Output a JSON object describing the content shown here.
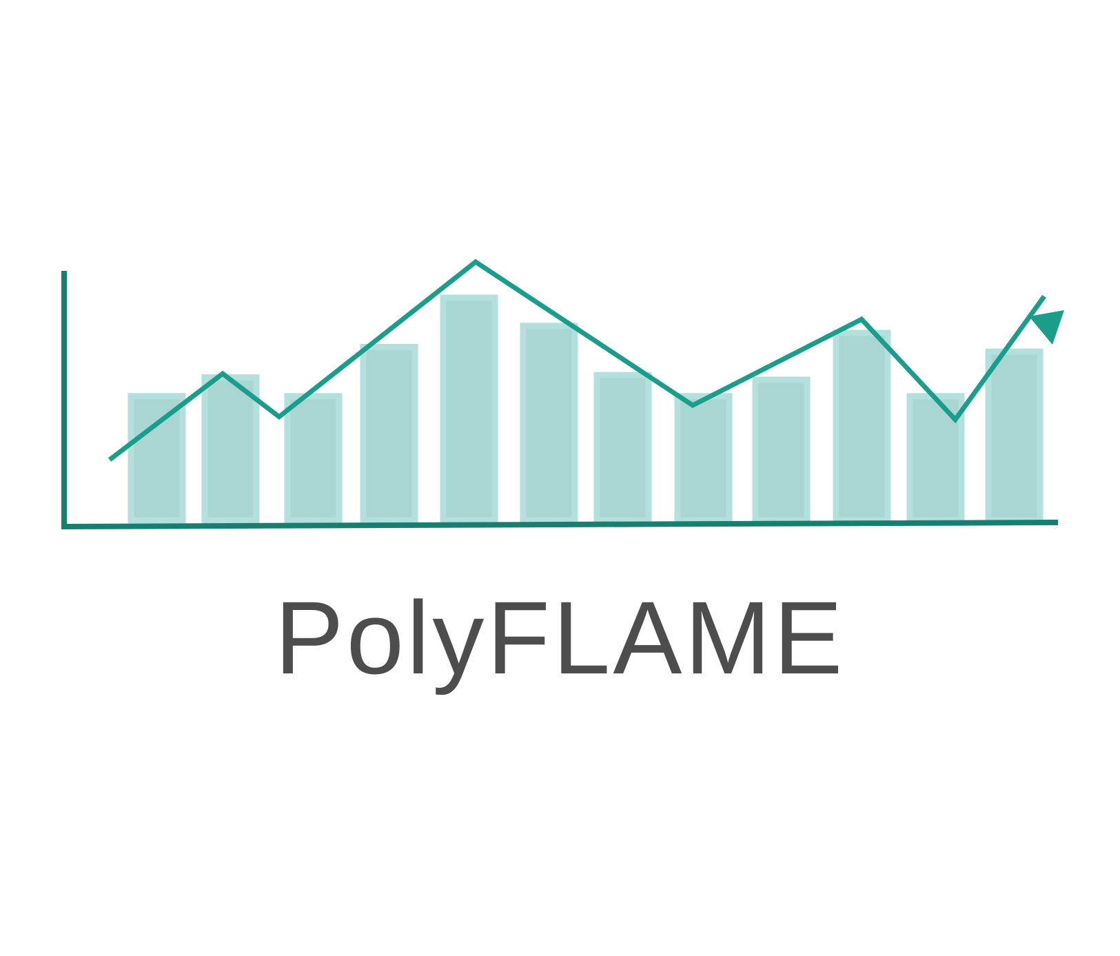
{
  "logo": {
    "name": "PolyFLAME",
    "colors": {
      "axis": "#167f70",
      "trend_line": "#1a9e8c",
      "bar_fill": "#a9d6d3",
      "bar_outline": "#b3e0dc",
      "wordmark": "#4d4d4d",
      "background": "#ffffff"
    },
    "bar_levels": [
      0.53,
      0.61,
      0.53,
      0.74,
      0.95,
      0.83,
      0.62,
      0.53,
      0.6,
      0.8,
      0.53,
      0.72
    ],
    "trend_levels": [
      0.31,
      0.61,
      0.46,
      1.0,
      0.5,
      0.8,
      0.45,
      0.88
    ]
  }
}
